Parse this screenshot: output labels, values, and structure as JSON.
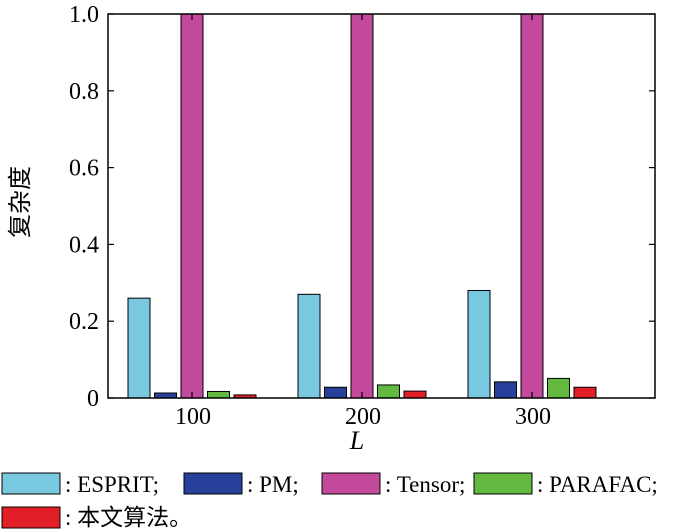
{
  "chart_data": {
    "type": "bar",
    "categories": [
      "100",
      "200",
      "300"
    ],
    "series": [
      {
        "name": "ESPRIT",
        "values": [
          0.26,
          0.27,
          0.28
        ],
        "color": "#78c9df"
      },
      {
        "name": "PM",
        "values": [
          0.013,
          0.028,
          0.042
        ],
        "color": "#27409a"
      },
      {
        "name": "Tensor",
        "values": [
          1.0,
          1.0,
          1.0
        ],
        "color": "#c3499c"
      },
      {
        "name": "PARAFAC",
        "values": [
          0.017,
          0.034,
          0.051
        ],
        "color": "#63b93f"
      },
      {
        "name": "本文算法",
        "values": [
          0.008,
          0.018,
          0.028
        ],
        "color": "#e21e26"
      }
    ],
    "xlabel": "L",
    "ylabel": "复杂度",
    "ylim": [
      0,
      1.0
    ],
    "ytick_labels": [
      "0",
      "0.2",
      "0.4",
      "0.6",
      "0.8",
      "1.0"
    ],
    "grid": false,
    "legend": {
      "placement": "bottom",
      "prefix": ": ",
      "suffixes": [
        ";",
        ";",
        ";",
        ";",
        "。"
      ]
    }
  }
}
